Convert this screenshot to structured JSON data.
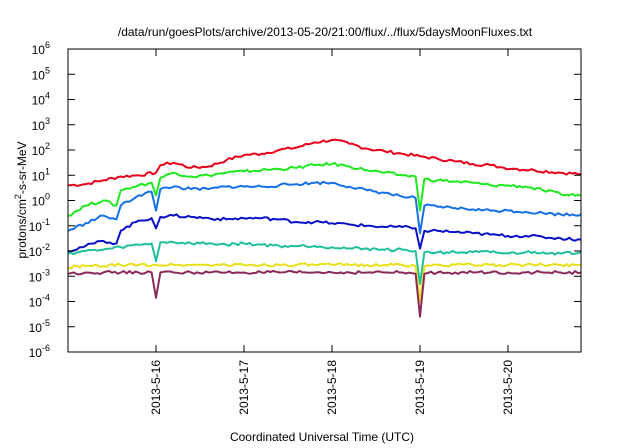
{
  "chart_data": {
    "type": "line",
    "title": "/data/run/goesPlots/archive/2013-05-20/21:00/flux/../flux/5daysMoonFluxes.txt",
    "xlabel": "Coordinated Universal Time (UTC)",
    "ylabel_parts": {
      "base": "protons/cm",
      "sup": "2",
      "rest": "-s-sr-MeV"
    },
    "scale": "log",
    "grid": false,
    "legend": "none",
    "xlim": [
      0,
      5.83
    ],
    "ylim_exp": [
      -6,
      6
    ],
    "x_ticks": [
      {
        "x": 1,
        "label": "2013-5-16"
      },
      {
        "x": 2,
        "label": "2013-5-17"
      },
      {
        "x": 3,
        "label": "2013-5-18"
      },
      {
        "x": 4,
        "label": "2013-5-19"
      },
      {
        "x": 5,
        "label": "2013-5-20"
      }
    ],
    "y_ticks": [
      {
        "exp": 6,
        "base": "10",
        "sup": "6"
      },
      {
        "exp": 5,
        "base": "10",
        "sup": "5"
      },
      {
        "exp": 4,
        "base": "10",
        "sup": "4"
      },
      {
        "exp": 3,
        "base": "10",
        "sup": "3"
      },
      {
        "exp": 2,
        "base": "10",
        "sup": "2"
      },
      {
        "exp": 1,
        "base": "10",
        "sup": "1"
      },
      {
        "exp": 0,
        "base": "10",
        "sup": "0"
      },
      {
        "exp": -1,
        "base": "10",
        "sup": "-1"
      },
      {
        "exp": -2,
        "base": "10",
        "sup": "-2"
      },
      {
        "exp": -3,
        "base": "10",
        "sup": "-3"
      },
      {
        "exp": -4,
        "base": "10",
        "sup": "-4"
      },
      {
        "exp": -5,
        "base": "10",
        "sup": "-5"
      },
      {
        "exp": -6,
        "base": "10",
        "sup": "-6"
      }
    ],
    "series": [
      {
        "color": "#e8001a",
        "points": [
          [
            0.0,
            0.6
          ],
          [
            0.2,
            0.65
          ],
          [
            0.4,
            0.8
          ],
          [
            0.6,
            0.95
          ],
          [
            0.8,
            1.0
          ],
          [
            1.0,
            1.1
          ],
          [
            1.05,
            1.4
          ],
          [
            1.2,
            1.5
          ],
          [
            1.4,
            1.3
          ],
          [
            1.6,
            1.35
          ],
          [
            1.8,
            1.6
          ],
          [
            2.0,
            1.8
          ],
          [
            2.2,
            1.85
          ],
          [
            2.4,
            2.0
          ],
          [
            2.6,
            2.1
          ],
          [
            2.8,
            2.3
          ],
          [
            3.0,
            2.4
          ],
          [
            3.2,
            2.25
          ],
          [
            3.4,
            2.05
          ],
          [
            3.6,
            1.95
          ],
          [
            3.8,
            1.85
          ],
          [
            4.0,
            1.75
          ],
          [
            4.2,
            1.65
          ],
          [
            4.4,
            1.55
          ],
          [
            4.6,
            1.45
          ],
          [
            4.8,
            1.4
          ],
          [
            4.95,
            1.3
          ],
          [
            5.1,
            1.25
          ],
          [
            5.3,
            1.2
          ],
          [
            5.6,
            1.1
          ],
          [
            5.83,
            1.05
          ]
        ]
      },
      {
        "color": "#1ee81e",
        "points": [
          [
            0.0,
            -0.6
          ],
          [
            0.2,
            -0.2
          ],
          [
            0.4,
            0.0
          ],
          [
            0.55,
            -0.2
          ],
          [
            0.6,
            0.4
          ],
          [
            0.8,
            0.6
          ],
          [
            0.95,
            0.7
          ],
          [
            1.0,
            0.2
          ],
          [
            1.05,
            0.9
          ],
          [
            1.2,
            1.1
          ],
          [
            1.4,
            0.95
          ],
          [
            1.6,
            1.0
          ],
          [
            1.8,
            1.1
          ],
          [
            2.0,
            1.15
          ],
          [
            2.2,
            1.2
          ],
          [
            2.4,
            1.25
          ],
          [
            2.6,
            1.3
          ],
          [
            2.8,
            1.4
          ],
          [
            3.0,
            1.45
          ],
          [
            3.2,
            1.35
          ],
          [
            3.4,
            1.2
          ],
          [
            3.6,
            1.1
          ],
          [
            3.8,
            1.0
          ],
          [
            3.95,
            0.95
          ],
          [
            4.0,
            -0.4
          ],
          [
            4.05,
            0.85
          ],
          [
            4.2,
            0.8
          ],
          [
            4.4,
            0.75
          ],
          [
            4.6,
            0.7
          ],
          [
            4.8,
            0.6
          ],
          [
            5.0,
            0.6
          ],
          [
            5.2,
            0.55
          ],
          [
            5.4,
            0.4
          ],
          [
            5.6,
            0.25
          ],
          [
            5.83,
            0.2
          ]
        ]
      },
      {
        "color": "#1670e8",
        "points": [
          [
            0.0,
            -1.2
          ],
          [
            0.2,
            -0.9
          ],
          [
            0.4,
            -0.6
          ],
          [
            0.55,
            -0.75
          ],
          [
            0.6,
            -0.2
          ],
          [
            0.8,
            0.2
          ],
          [
            0.95,
            0.35
          ],
          [
            1.0,
            -0.4
          ],
          [
            1.05,
            0.45
          ],
          [
            1.2,
            0.55
          ],
          [
            1.4,
            0.45
          ],
          [
            1.6,
            0.45
          ],
          [
            1.8,
            0.55
          ],
          [
            2.0,
            0.55
          ],
          [
            2.2,
            0.55
          ],
          [
            2.4,
            0.6
          ],
          [
            2.6,
            0.65
          ],
          [
            2.8,
            0.7
          ],
          [
            3.0,
            0.7
          ],
          [
            3.2,
            0.55
          ],
          [
            3.4,
            0.4
          ],
          [
            3.6,
            0.3
          ],
          [
            3.8,
            0.15
          ],
          [
            3.95,
            0.1
          ],
          [
            4.0,
            -1.3
          ],
          [
            4.05,
            -0.2
          ],
          [
            4.2,
            -0.25
          ],
          [
            4.4,
            -0.3
          ],
          [
            4.6,
            -0.35
          ],
          [
            4.8,
            -0.4
          ],
          [
            5.0,
            -0.4
          ],
          [
            5.2,
            -0.45
          ],
          [
            5.4,
            -0.5
          ],
          [
            5.6,
            -0.55
          ],
          [
            5.83,
            -0.55
          ]
        ]
      },
      {
        "color": "#0a10c8",
        "points": [
          [
            0.0,
            -2.0
          ],
          [
            0.2,
            -1.8
          ],
          [
            0.4,
            -1.6
          ],
          [
            0.55,
            -1.7
          ],
          [
            0.6,
            -1.2
          ],
          [
            0.8,
            -0.8
          ],
          [
            0.95,
            -0.7
          ],
          [
            1.0,
            -1.1
          ],
          [
            1.05,
            -0.65
          ],
          [
            1.2,
            -0.6
          ],
          [
            1.4,
            -0.65
          ],
          [
            1.6,
            -0.7
          ],
          [
            1.8,
            -0.75
          ],
          [
            2.0,
            -0.7
          ],
          [
            2.2,
            -0.7
          ],
          [
            2.4,
            -0.75
          ],
          [
            2.6,
            -0.85
          ],
          [
            2.8,
            -0.85
          ],
          [
            3.0,
            -0.9
          ],
          [
            3.2,
            -0.95
          ],
          [
            3.4,
            -1.0
          ],
          [
            3.6,
            -1.05
          ],
          [
            3.8,
            -1.05
          ],
          [
            3.95,
            -1.1
          ],
          [
            4.0,
            -1.9
          ],
          [
            4.05,
            -1.2
          ],
          [
            4.2,
            -1.2
          ],
          [
            4.4,
            -1.25
          ],
          [
            4.6,
            -1.3
          ],
          [
            4.8,
            -1.35
          ],
          [
            5.0,
            -1.4
          ],
          [
            5.2,
            -1.4
          ],
          [
            5.4,
            -1.45
          ],
          [
            5.6,
            -1.5
          ],
          [
            5.83,
            -1.55
          ]
        ]
      },
      {
        "color": "#1ebf9a",
        "points": [
          [
            0.0,
            -2.1
          ],
          [
            0.2,
            -2.0
          ],
          [
            0.4,
            -1.95
          ],
          [
            0.6,
            -1.85
          ],
          [
            0.8,
            -1.75
          ],
          [
            0.95,
            -1.7
          ],
          [
            1.0,
            -2.4
          ],
          [
            1.05,
            -1.65
          ],
          [
            1.2,
            -1.65
          ],
          [
            1.4,
            -1.7
          ],
          [
            1.6,
            -1.7
          ],
          [
            1.8,
            -1.75
          ],
          [
            2.0,
            -1.7
          ],
          [
            2.2,
            -1.75
          ],
          [
            2.4,
            -1.8
          ],
          [
            2.6,
            -1.8
          ],
          [
            2.8,
            -1.8
          ],
          [
            3.0,
            -1.85
          ],
          [
            3.2,
            -1.9
          ],
          [
            3.4,
            -1.9
          ],
          [
            3.6,
            -1.95
          ],
          [
            3.8,
            -1.95
          ],
          [
            3.95,
            -2.0
          ],
          [
            4.0,
            -3.3
          ],
          [
            4.05,
            -2.05
          ],
          [
            4.2,
            -2.05
          ],
          [
            4.4,
            -2.05
          ],
          [
            4.6,
            -2.05
          ],
          [
            4.8,
            -2.05
          ],
          [
            5.0,
            -2.1
          ],
          [
            5.2,
            -2.05
          ],
          [
            5.4,
            -2.05
          ],
          [
            5.6,
            -2.1
          ],
          [
            5.83,
            -2.05
          ]
        ]
      },
      {
        "color": "#e8e01a",
        "points": [
          [
            0.0,
            -2.65
          ],
          [
            0.2,
            -2.6
          ],
          [
            0.4,
            -2.6
          ],
          [
            0.6,
            -2.55
          ],
          [
            0.8,
            -2.55
          ],
          [
            1.0,
            -2.55
          ],
          [
            1.2,
            -2.55
          ],
          [
            1.4,
            -2.55
          ],
          [
            1.6,
            -2.55
          ],
          [
            1.8,
            -2.55
          ],
          [
            2.0,
            -2.55
          ],
          [
            2.2,
            -2.55
          ],
          [
            2.4,
            -2.55
          ],
          [
            2.6,
            -2.55
          ],
          [
            2.8,
            -2.55
          ],
          [
            3.0,
            -2.55
          ],
          [
            3.2,
            -2.55
          ],
          [
            3.4,
            -2.55
          ],
          [
            3.6,
            -2.55
          ],
          [
            3.8,
            -2.55
          ],
          [
            3.95,
            -2.6
          ],
          [
            4.0,
            -4.0
          ],
          [
            4.05,
            -2.6
          ],
          [
            4.2,
            -2.55
          ],
          [
            4.4,
            -2.55
          ],
          [
            4.6,
            -2.55
          ],
          [
            4.8,
            -2.55
          ],
          [
            5.0,
            -2.55
          ],
          [
            5.2,
            -2.55
          ],
          [
            5.4,
            -2.55
          ],
          [
            5.6,
            -2.55
          ],
          [
            5.83,
            -2.55
          ]
        ]
      },
      {
        "color": "#8a2a5a",
        "points": [
          [
            0.0,
            -2.9
          ],
          [
            0.2,
            -2.85
          ],
          [
            0.4,
            -2.85
          ],
          [
            0.6,
            -2.85
          ],
          [
            0.8,
            -2.85
          ],
          [
            0.95,
            -2.85
          ],
          [
            1.0,
            -3.85
          ],
          [
            1.05,
            -2.85
          ],
          [
            1.2,
            -2.85
          ],
          [
            1.4,
            -2.85
          ],
          [
            1.6,
            -2.85
          ],
          [
            1.8,
            -2.85
          ],
          [
            2.0,
            -2.85
          ],
          [
            2.2,
            -2.85
          ],
          [
            2.4,
            -2.85
          ],
          [
            2.6,
            -2.85
          ],
          [
            2.8,
            -2.85
          ],
          [
            3.0,
            -2.85
          ],
          [
            3.2,
            -2.85
          ],
          [
            3.4,
            -2.85
          ],
          [
            3.6,
            -2.85
          ],
          [
            3.8,
            -2.85
          ],
          [
            3.95,
            -2.9
          ],
          [
            4.0,
            -4.6
          ],
          [
            4.05,
            -2.9
          ],
          [
            4.2,
            -2.85
          ],
          [
            4.4,
            -2.85
          ],
          [
            4.6,
            -2.85
          ],
          [
            4.8,
            -2.85
          ],
          [
            5.0,
            -2.85
          ],
          [
            5.2,
            -2.85
          ],
          [
            5.4,
            -2.85
          ],
          [
            5.6,
            -2.85
          ],
          [
            5.83,
            -2.85
          ]
        ]
      }
    ]
  }
}
